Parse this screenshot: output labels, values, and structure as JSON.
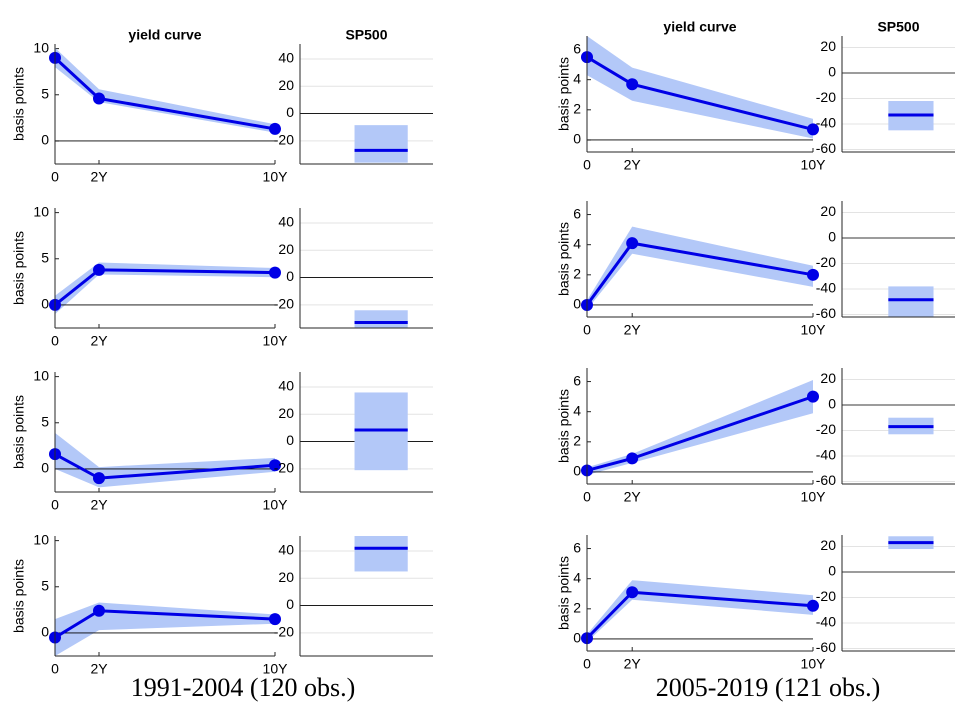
{
  "chart_data": [
    {
      "type": "line",
      "title": "yield curve",
      "ylabel": "basis points",
      "x": [
        0,
        2,
        10
      ],
      "xlim": [
        0,
        10
      ],
      "xticks": [
        0,
        {
          "value": 2,
          "label": "2Y"
        },
        {
          "value": 10,
          "label": "10Y"
        }
      ],
      "ylim": [
        -2.5,
        10.5
      ],
      "yticks": [
        0,
        5,
        10
      ],
      "values": [
        9.0,
        4.6,
        1.3
      ],
      "lower": [
        8.0,
        4.2,
        0.9
      ],
      "upper": [
        10.1,
        5.6,
        1.8
      ],
      "color": "#0000e6",
      "band_color": "#b3c8f8"
    },
    {
      "type": "interval",
      "title": "SP500",
      "ylim": [
        -37,
        51
      ],
      "yticks": [
        -20,
        0,
        20,
        40
      ],
      "grid": true,
      "value": -27,
      "lower": -36,
      "upper": -8.5,
      "color": "#0000e6",
      "band_color": "#b3c8f8"
    },
    {
      "type": "line",
      "ylabel": "basis points",
      "x": [
        0,
        2,
        10
      ],
      "xlim": [
        0,
        10
      ],
      "xticks": [
        0,
        {
          "value": 2,
          "label": "2Y"
        },
        {
          "value": 10,
          "label": "10Y"
        }
      ],
      "ylim": [
        -2.5,
        10.5
      ],
      "yticks": [
        0,
        5,
        10
      ],
      "values": [
        0,
        3.8,
        3.5
      ],
      "lower": [
        -1.0,
        3.3,
        3.0
      ],
      "upper": [
        1.0,
        4.6,
        4.0
      ],
      "color": "#0000e6",
      "band_color": "#b3c8f8"
    },
    {
      "type": "interval",
      "ylim": [
        -37,
        51
      ],
      "yticks": [
        -20,
        0,
        20,
        40
      ],
      "grid": true,
      "value": -33,
      "lower": -37,
      "upper": -24,
      "color": "#0000e6",
      "band_color": "#b3c8f8"
    },
    {
      "type": "line",
      "ylabel": "basis points",
      "x": [
        0,
        2,
        10
      ],
      "xlim": [
        0,
        10
      ],
      "xticks": [
        0,
        {
          "value": 2,
          "label": "2Y"
        },
        {
          "value": 10,
          "label": "10Y"
        }
      ],
      "ylim": [
        -2.5,
        10.5
      ],
      "yticks": [
        0,
        5,
        10
      ],
      "values": [
        1.6,
        -1.0,
        0.4
      ],
      "lower": [
        0,
        -2.0,
        -0.3
      ],
      "upper": [
        3.9,
        0.2,
        1.2
      ],
      "color": "#0000e6",
      "band_color": "#b3c8f8"
    },
    {
      "type": "interval",
      "ylim": [
        -37,
        51
      ],
      "yticks": [
        -20,
        0,
        20,
        40
      ],
      "grid": true,
      "value": 8.5,
      "lower": -21,
      "upper": 36,
      "color": "#0000e6",
      "band_color": "#b3c8f8"
    },
    {
      "type": "line",
      "ylabel": "basis points",
      "x": [
        0,
        2,
        10
      ],
      "xlim": [
        0,
        10
      ],
      "xticks": [
        0,
        {
          "value": 2,
          "label": "2Y"
        },
        {
          "value": 10,
          "label": "10Y"
        }
      ],
      "ylim": [
        -2.5,
        10.5
      ],
      "yticks": [
        0,
        5,
        10
      ],
      "values": [
        -0.5,
        2.4,
        1.5
      ],
      "lower": [
        -2.5,
        0.3,
        1.0
      ],
      "upper": [
        1.5,
        3.3,
        2.0
      ],
      "color": "#0000e6",
      "band_color": "#b3c8f8"
    },
    {
      "type": "interval",
      "ylim": [
        -37,
        51
      ],
      "yticks": [
        -20,
        0,
        20,
        40
      ],
      "grid": true,
      "value": 42,
      "lower": 25,
      "upper": 51,
      "color": "#0000e6",
      "band_color": "#b3c8f8"
    },
    {
      "type": "line",
      "title": "yield curve",
      "ylabel": "basis points",
      "x": [
        0,
        2,
        10
      ],
      "xlim": [
        0,
        10
      ],
      "xticks": [
        0,
        {
          "value": 2,
          "label": "2Y"
        },
        {
          "value": 10,
          "label": "10Y"
        }
      ],
      "ylim": [
        -0.8,
        6.9
      ],
      "yticks": [
        0,
        2,
        4,
        6
      ],
      "values": [
        5.5,
        3.7,
        0.7
      ],
      "lower": [
        4.3,
        2.6,
        0.1
      ],
      "upper": [
        6.9,
        4.8,
        1.4
      ],
      "color": "#0000e6",
      "band_color": "#b3c8f8"
    },
    {
      "type": "interval",
      "title": "SP500",
      "ylim": [
        -62,
        29
      ],
      "yticks": [
        -60,
        -40,
        -20,
        0,
        20
      ],
      "grid": true,
      "value": -33,
      "lower": -45,
      "upper": -22,
      "color": "#0000e6",
      "band_color": "#b3c8f8"
    },
    {
      "type": "line",
      "ylabel": "basis points",
      "x": [
        0,
        2,
        10
      ],
      "xlim": [
        0,
        10
      ],
      "xticks": [
        0,
        {
          "value": 2,
          "label": "2Y"
        },
        {
          "value": 10,
          "label": "10Y"
        }
      ],
      "ylim": [
        -0.8,
        6.9
      ],
      "yticks": [
        0,
        2,
        4,
        6
      ],
      "values": [
        0,
        4.1,
        2.0
      ],
      "lower": [
        -0.3,
        3.4,
        1.2
      ],
      "upper": [
        0.3,
        5.2,
        2.6
      ],
      "color": "#0000e6",
      "band_color": "#b3c8f8"
    },
    {
      "type": "interval",
      "ylim": [
        -62,
        29
      ],
      "yticks": [
        -60,
        -40,
        -20,
        0,
        20
      ],
      "grid": true,
      "value": -48.5,
      "lower": -62,
      "upper": -38,
      "color": "#0000e6",
      "band_color": "#b3c8f8"
    },
    {
      "type": "line",
      "ylabel": "basis points",
      "x": [
        0,
        2,
        10
      ],
      "xlim": [
        0,
        10
      ],
      "xticks": [
        0,
        {
          "value": 2,
          "label": "2Y"
        },
        {
          "value": 10,
          "label": "10Y"
        }
      ],
      "ylim": [
        -0.8,
        6.9
      ],
      "yticks": [
        0,
        2,
        4,
        6
      ],
      "values": [
        0.1,
        0.9,
        5.0
      ],
      "lower": [
        -0.2,
        0.6,
        3.9
      ],
      "upper": [
        0.3,
        1.2,
        6.1
      ],
      "color": "#0000e6",
      "band_color": "#b3c8f8"
    },
    {
      "type": "interval",
      "ylim": [
        -62,
        29
      ],
      "yticks": [
        -60,
        -40,
        -20,
        0,
        20
      ],
      "grid": true,
      "value": -17,
      "lower": -23,
      "upper": -10,
      "color": "#0000e6",
      "band_color": "#b3c8f8"
    },
    {
      "type": "line",
      "ylabel": "basis points",
      "x": [
        0,
        2,
        10
      ],
      "xlim": [
        0,
        10
      ],
      "xticks": [
        0,
        {
          "value": 2,
          "label": "2Y"
        },
        {
          "value": 10,
          "label": "10Y"
        }
      ],
      "ylim": [
        -0.8,
        6.9
      ],
      "yticks": [
        0,
        2,
        4,
        6
      ],
      "values": [
        0.05,
        3.1,
        2.2
      ],
      "lower": [
        -0.2,
        2.6,
        1.6
      ],
      "upper": [
        0.3,
        3.9,
        2.9
      ],
      "color": "#0000e6",
      "band_color": "#b3c8f8"
    },
    {
      "type": "interval",
      "ylim": [
        -62,
        29
      ],
      "yticks": [
        -60,
        -40,
        -20,
        0,
        20
      ],
      "grid": true,
      "value": 23,
      "lower": 18,
      "upper": 28,
      "color": "#0000e6",
      "band_color": "#b3c8f8"
    }
  ],
  "captions": [
    "1991-2004 (120 obs.)",
    "2005-2019 (121 obs.)"
  ]
}
